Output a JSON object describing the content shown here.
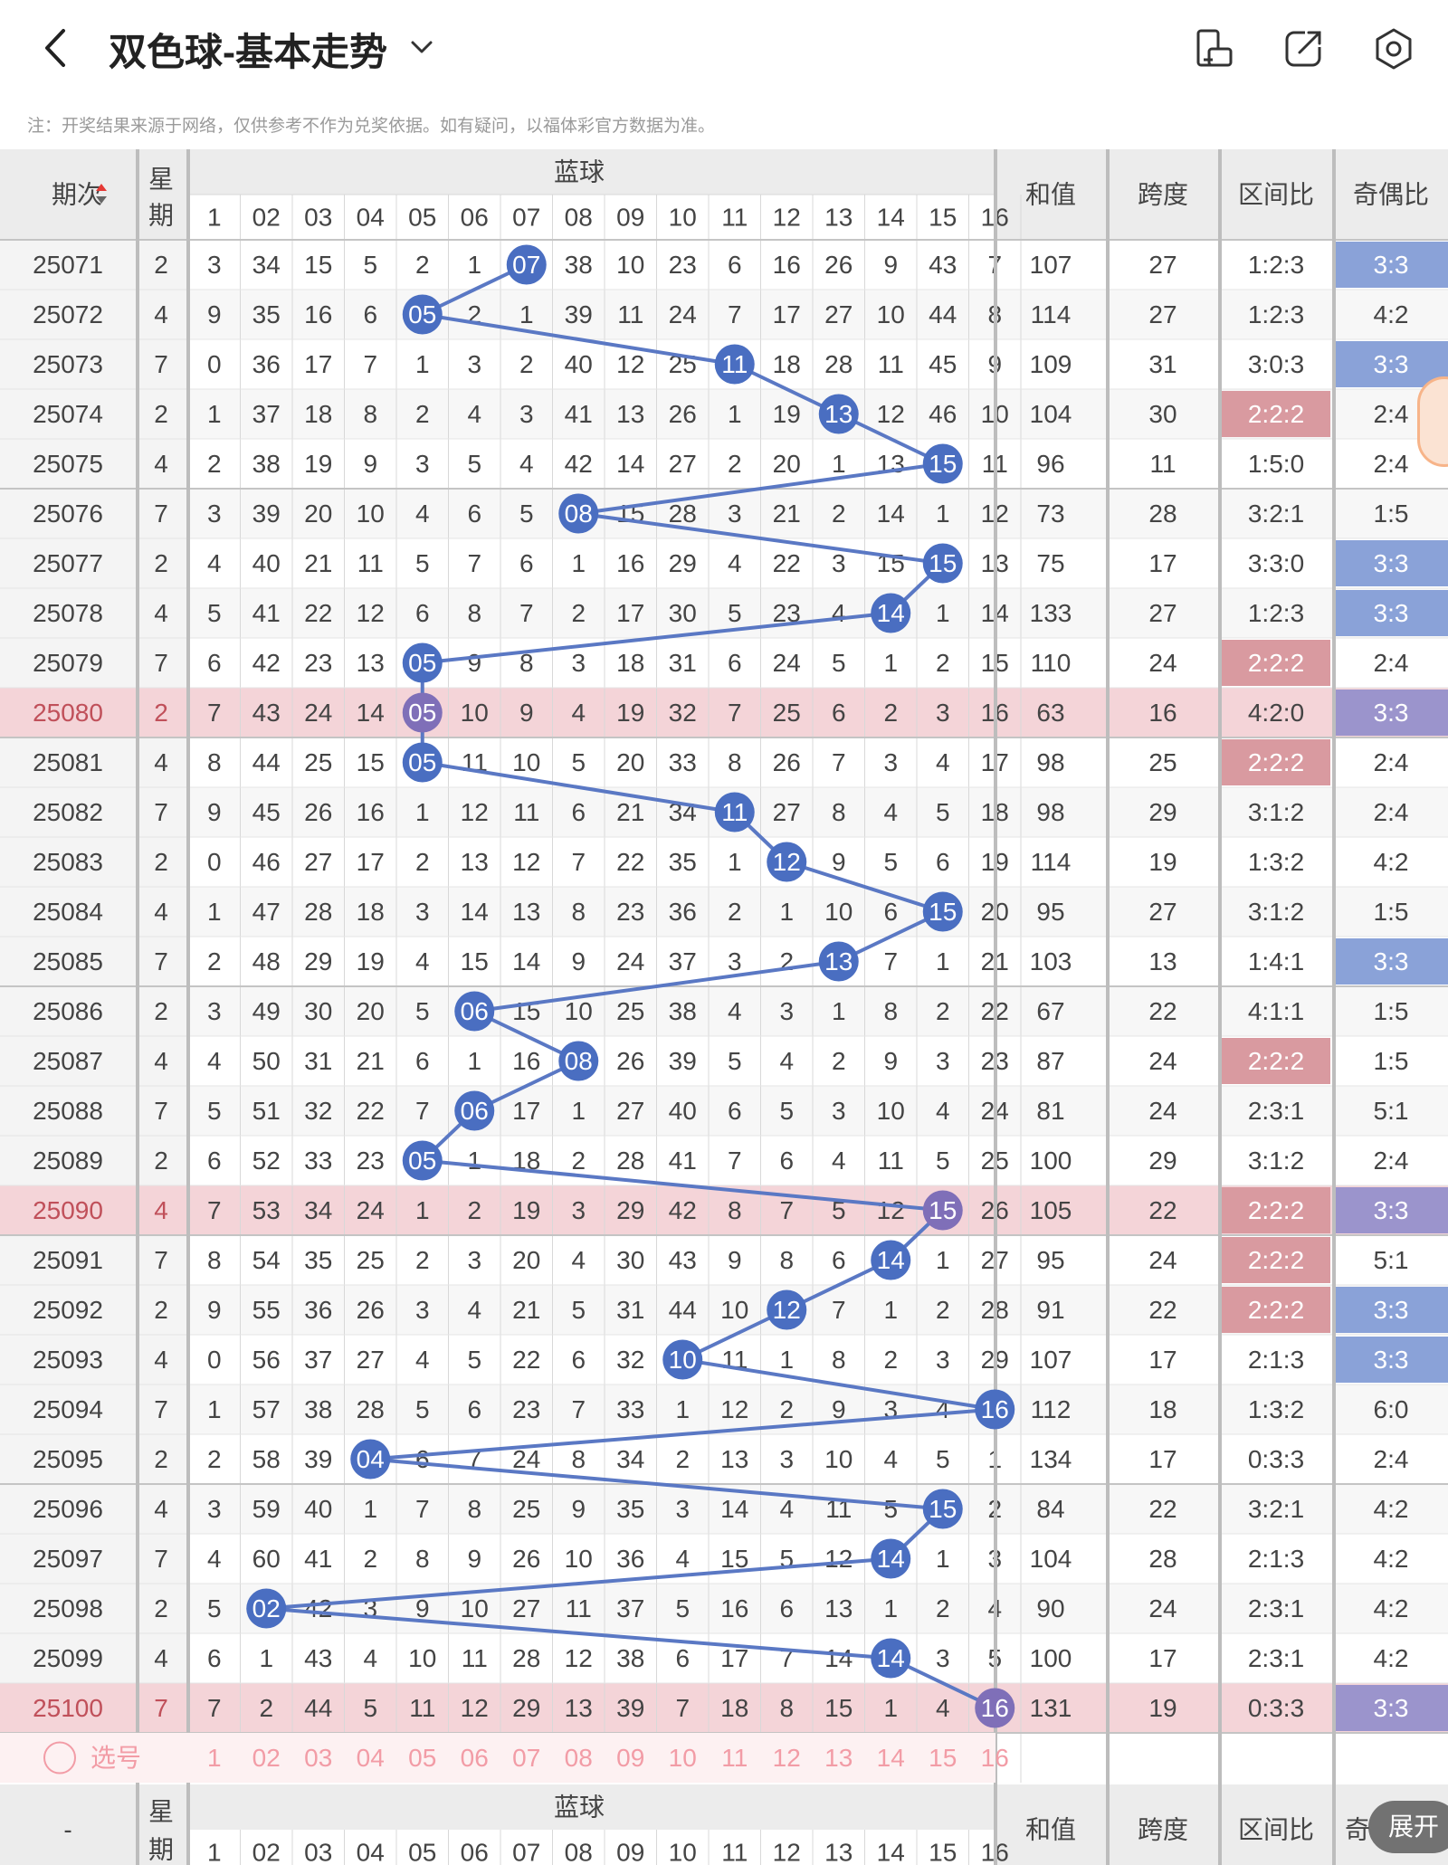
{
  "header": {
    "title": "双色球-基本走势",
    "icons": [
      "back-arrow-icon",
      "chevron-down-icon",
      "phone-rotate-icon",
      "share-icon",
      "settings-icon"
    ]
  },
  "notice": "注：开奖结果来源于网络，仅供参考不作为兑奖依据。如有疑问，以福体彩官方数据为准。",
  "columns": {
    "period": "期次",
    "week": "星期",
    "blue": "蓝球",
    "blue_numbers": [
      "1",
      "02",
      "03",
      "04",
      "05",
      "06",
      "07",
      "08",
      "09",
      "10",
      "11",
      "12",
      "13",
      "14",
      "15",
      "16"
    ],
    "sum": "和值",
    "span": "跨度",
    "zone": "区间比",
    "odd_even": "奇偶比"
  },
  "rows": [
    {
      "period": "25071",
      "week": "2",
      "cells": [
        "3",
        "34",
        "15",
        "5",
        "2",
        "1",
        "07",
        "38",
        "10",
        "23",
        "6",
        "16",
        "26",
        "9",
        "43",
        "7"
      ],
      "hit": 7,
      "sum": "107",
      "span": "27",
      "zone": "1:2:3",
      "oe": "3:3"
    },
    {
      "period": "25072",
      "week": "4",
      "cells": [
        "9",
        "35",
        "16",
        "6",
        "05",
        "2",
        "1",
        "39",
        "11",
        "24",
        "7",
        "17",
        "27",
        "10",
        "44",
        "8"
      ],
      "hit": 5,
      "sum": "114",
      "span": "27",
      "zone": "1:2:3",
      "oe": "4:2"
    },
    {
      "period": "25073",
      "week": "7",
      "cells": [
        "0",
        "36",
        "17",
        "7",
        "1",
        "3",
        "2",
        "40",
        "12",
        "25",
        "11",
        "18",
        "28",
        "11",
        "45",
        "9"
      ],
      "hit": 11,
      "sum": "109",
      "span": "31",
      "zone": "3:0:3",
      "oe": "3:3"
    },
    {
      "period": "25074",
      "week": "2",
      "cells": [
        "1",
        "37",
        "18",
        "8",
        "2",
        "4",
        "3",
        "41",
        "13",
        "26",
        "1",
        "19",
        "13",
        "12",
        "46",
        "10"
      ],
      "hit": 13,
      "sum": "104",
      "span": "30",
      "zone": "2:2:2",
      "oe": "2:4"
    },
    {
      "period": "25075",
      "week": "4",
      "cells": [
        "2",
        "38",
        "19",
        "9",
        "3",
        "5",
        "4",
        "42",
        "14",
        "27",
        "2",
        "20",
        "1",
        "13",
        "15",
        "11"
      ],
      "hit": 15,
      "sum": "96",
      "span": "11",
      "zone": "1:5:0",
      "oe": "2:4"
    },
    {
      "period": "25076",
      "week": "7",
      "cells": [
        "3",
        "39",
        "20",
        "10",
        "4",
        "6",
        "5",
        "08",
        "15",
        "28",
        "3",
        "21",
        "2",
        "14",
        "1",
        "12"
      ],
      "hit": 8,
      "sum": "73",
      "span": "28",
      "zone": "3:2:1",
      "oe": "1:5"
    },
    {
      "period": "25077",
      "week": "2",
      "cells": [
        "4",
        "40",
        "21",
        "11",
        "5",
        "7",
        "6",
        "1",
        "16",
        "29",
        "4",
        "22",
        "3",
        "15",
        "15",
        "13"
      ],
      "hit": 15,
      "sum": "75",
      "span": "17",
      "zone": "3:3:0",
      "oe": "3:3"
    },
    {
      "period": "25078",
      "week": "4",
      "cells": [
        "5",
        "41",
        "22",
        "12",
        "6",
        "8",
        "7",
        "2",
        "17",
        "30",
        "5",
        "23",
        "4",
        "14",
        "1",
        "14"
      ],
      "hit": 14,
      "sum": "133",
      "span": "27",
      "zone": "1:2:3",
      "oe": "3:3"
    },
    {
      "period": "25079",
      "week": "7",
      "cells": [
        "6",
        "42",
        "23",
        "13",
        "05",
        "9",
        "8",
        "3",
        "18",
        "31",
        "6",
        "24",
        "5",
        "1",
        "2",
        "15"
      ],
      "hit": 5,
      "sum": "110",
      "span": "24",
      "zone": "2:2:2",
      "oe": "2:4"
    },
    {
      "period": "25080",
      "week": "2",
      "cells": [
        "7",
        "43",
        "24",
        "14",
        "05",
        "10",
        "9",
        "4",
        "19",
        "32",
        "7",
        "25",
        "6",
        "2",
        "3",
        "16"
      ],
      "hit": 5,
      "sum": "63",
      "span": "16",
      "zone": "4:2:0",
      "oe": "3:3"
    },
    {
      "period": "25081",
      "week": "4",
      "cells": [
        "8",
        "44",
        "25",
        "15",
        "05",
        "11",
        "10",
        "5",
        "20",
        "33",
        "8",
        "26",
        "7",
        "3",
        "4",
        "17"
      ],
      "hit": 5,
      "sum": "98",
      "span": "25",
      "zone": "2:2:2",
      "oe": "2:4"
    },
    {
      "period": "25082",
      "week": "7",
      "cells": [
        "9",
        "45",
        "26",
        "16",
        "1",
        "12",
        "11",
        "6",
        "21",
        "34",
        "11",
        "27",
        "8",
        "4",
        "5",
        "18"
      ],
      "hit": 11,
      "sum": "98",
      "span": "29",
      "zone": "3:1:2",
      "oe": "2:4"
    },
    {
      "period": "25083",
      "week": "2",
      "cells": [
        "0",
        "46",
        "27",
        "17",
        "2",
        "13",
        "12",
        "7",
        "22",
        "35",
        "1",
        "12",
        "9",
        "5",
        "6",
        "19"
      ],
      "hit": 12,
      "sum": "114",
      "span": "19",
      "zone": "1:3:2",
      "oe": "4:2"
    },
    {
      "period": "25084",
      "week": "4",
      "cells": [
        "1",
        "47",
        "28",
        "18",
        "3",
        "14",
        "13",
        "8",
        "23",
        "36",
        "2",
        "1",
        "10",
        "6",
        "15",
        "20"
      ],
      "hit": 15,
      "sum": "95",
      "span": "27",
      "zone": "3:1:2",
      "oe": "1:5"
    },
    {
      "period": "25085",
      "week": "7",
      "cells": [
        "2",
        "48",
        "29",
        "19",
        "4",
        "15",
        "14",
        "9",
        "24",
        "37",
        "3",
        "2",
        "13",
        "7",
        "1",
        "21"
      ],
      "hit": 13,
      "sum": "103",
      "span": "13",
      "zone": "1:4:1",
      "oe": "3:3"
    },
    {
      "period": "25086",
      "week": "2",
      "cells": [
        "3",
        "49",
        "30",
        "20",
        "5",
        "06",
        "15",
        "10",
        "25",
        "38",
        "4",
        "3",
        "1",
        "8",
        "2",
        "22"
      ],
      "hit": 6,
      "sum": "67",
      "span": "22",
      "zone": "4:1:1",
      "oe": "1:5"
    },
    {
      "period": "25087",
      "week": "4",
      "cells": [
        "4",
        "50",
        "31",
        "21",
        "6",
        "1",
        "16",
        "08",
        "26",
        "39",
        "5",
        "4",
        "2",
        "9",
        "3",
        "23"
      ],
      "hit": 8,
      "sum": "87",
      "span": "24",
      "zone": "2:2:2",
      "oe": "1:5"
    },
    {
      "period": "25088",
      "week": "7",
      "cells": [
        "5",
        "51",
        "32",
        "22",
        "7",
        "06",
        "17",
        "1",
        "27",
        "40",
        "6",
        "5",
        "3",
        "10",
        "4",
        "24"
      ],
      "hit": 6,
      "sum": "81",
      "span": "24",
      "zone": "2:3:1",
      "oe": "5:1"
    },
    {
      "period": "25089",
      "week": "2",
      "cells": [
        "6",
        "52",
        "33",
        "23",
        "05",
        "1",
        "18",
        "2",
        "28",
        "41",
        "7",
        "6",
        "4",
        "11",
        "5",
        "25"
      ],
      "hit": 5,
      "sum": "100",
      "span": "29",
      "zone": "3:1:2",
      "oe": "2:4"
    },
    {
      "period": "25090",
      "week": "4",
      "cells": [
        "7",
        "53",
        "34",
        "24",
        "1",
        "2",
        "19",
        "3",
        "29",
        "42",
        "8",
        "7",
        "5",
        "12",
        "15",
        "26"
      ],
      "hit": 15,
      "sum": "105",
      "span": "22",
      "zone": "2:2:2",
      "oe": "3:3"
    },
    {
      "period": "25091",
      "week": "7",
      "cells": [
        "8",
        "54",
        "35",
        "25",
        "2",
        "3",
        "20",
        "4",
        "30",
        "43",
        "9",
        "8",
        "6",
        "14",
        "1",
        "27"
      ],
      "hit": 14,
      "sum": "95",
      "span": "24",
      "zone": "2:2:2",
      "oe": "5:1"
    },
    {
      "period": "25092",
      "week": "2",
      "cells": [
        "9",
        "55",
        "36",
        "26",
        "3",
        "4",
        "21",
        "5",
        "31",
        "44",
        "10",
        "12",
        "7",
        "1",
        "2",
        "28"
      ],
      "hit": 12,
      "sum": "91",
      "span": "22",
      "zone": "2:2:2",
      "oe": "3:3"
    },
    {
      "period": "25093",
      "week": "4",
      "cells": [
        "0",
        "56",
        "37",
        "27",
        "4",
        "5",
        "22",
        "6",
        "32",
        "10",
        "11",
        "1",
        "8",
        "2",
        "3",
        "29"
      ],
      "hit": 10,
      "sum": "107",
      "span": "17",
      "zone": "2:1:3",
      "oe": "3:3"
    },
    {
      "period": "25094",
      "week": "7",
      "cells": [
        "1",
        "57",
        "38",
        "28",
        "5",
        "6",
        "23",
        "7",
        "33",
        "1",
        "12",
        "2",
        "9",
        "3",
        "4",
        "16"
      ],
      "hit": 16,
      "sum": "112",
      "span": "18",
      "zone": "1:3:2",
      "oe": "6:0"
    },
    {
      "period": "25095",
      "week": "2",
      "cells": [
        "2",
        "58",
        "39",
        "04",
        "6",
        "7",
        "24",
        "8",
        "34",
        "2",
        "13",
        "3",
        "10",
        "4",
        "5",
        "1"
      ],
      "hit": 4,
      "sum": "134",
      "span": "17",
      "zone": "0:3:3",
      "oe": "2:4"
    },
    {
      "period": "25096",
      "week": "4",
      "cells": [
        "3",
        "59",
        "40",
        "1",
        "7",
        "8",
        "25",
        "9",
        "35",
        "3",
        "14",
        "4",
        "11",
        "5",
        "15",
        "2"
      ],
      "hit": 15,
      "sum": "84",
      "span": "22",
      "zone": "3:2:1",
      "oe": "4:2"
    },
    {
      "period": "25097",
      "week": "7",
      "cells": [
        "4",
        "60",
        "41",
        "2",
        "8",
        "9",
        "26",
        "10",
        "36",
        "4",
        "15",
        "5",
        "12",
        "14",
        "1",
        "3"
      ],
      "hit": 14,
      "sum": "104",
      "span": "28",
      "zone": "2:1:3",
      "oe": "4:2"
    },
    {
      "period": "25098",
      "week": "2",
      "cells": [
        "5",
        "02",
        "42",
        "3",
        "9",
        "10",
        "27",
        "11",
        "37",
        "5",
        "16",
        "6",
        "13",
        "1",
        "2",
        "4"
      ],
      "hit": 2,
      "sum": "90",
      "span": "24",
      "zone": "2:3:1",
      "oe": "4:2"
    },
    {
      "period": "25099",
      "week": "4",
      "cells": [
        "6",
        "1",
        "43",
        "4",
        "10",
        "11",
        "28",
        "12",
        "38",
        "6",
        "17",
        "7",
        "14",
        "14",
        "3",
        "5"
      ],
      "hit": 14,
      "sum": "100",
      "span": "17",
      "zone": "2:3:1",
      "oe": "4:2"
    },
    {
      "period": "25100",
      "week": "7",
      "cells": [
        "7",
        "2",
        "44",
        "5",
        "11",
        "12",
        "29",
        "13",
        "39",
        "7",
        "18",
        "8",
        "15",
        "1",
        "4",
        "16"
      ],
      "hit": 16,
      "sum": "131",
      "span": "19",
      "zone": "0:3:3",
      "oe": "3:3"
    }
  ],
  "select_row": {
    "label": "选号",
    "numbers": [
      "1",
      "02",
      "03",
      "04",
      "05",
      "06",
      "07",
      "08",
      "09",
      "10",
      "11",
      "12",
      "13",
      "14",
      "15",
      "16"
    ]
  },
  "footer_header": {
    "period": "-",
    "week": "星期",
    "blue": "蓝球",
    "sum": "和值",
    "span": "跨度",
    "zone": "区间比",
    "odd_even": "奇"
  },
  "expand_button": "展开",
  "colors": {
    "ball": "#4a6ec1",
    "trend_line": "#5a78c4",
    "header_bg": "#ececec",
    "highlight_row": "#f4d4d8",
    "oe_highlight": "#8aa2d8",
    "zone_highlight": "#d99aa0",
    "select_text": "#f29ca6"
  }
}
